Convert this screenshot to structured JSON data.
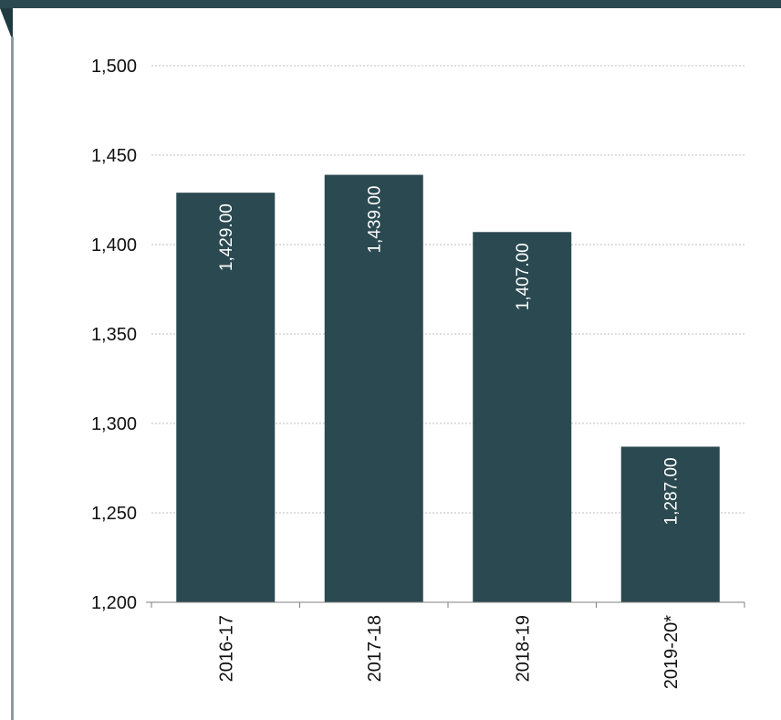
{
  "colors": {
    "bar": "#2b4951",
    "top_band": "#2b4951",
    "corner": "#1f3a41",
    "left_rule": "#8f9a9d",
    "grid": "#bfbfbf",
    "axis": "#7f7f7f"
  },
  "chart_data": {
    "type": "bar",
    "title": "",
    "xlabel": "",
    "ylabel": "",
    "categories": [
      "2016-17",
      "2017-18",
      "2018-19",
      "2019-20*"
    ],
    "values": [
      1429,
      1439,
      1407,
      1287
    ],
    "data_labels": [
      "1,429.00",
      "1,439.00",
      "1,407.00",
      "1,287.00"
    ],
    "ylim": [
      1200,
      1500
    ],
    "yticks": [
      1200,
      1250,
      1300,
      1350,
      1400,
      1450,
      1500
    ],
    "ytick_labels": [
      "1,200",
      "1,250",
      "1,300",
      "1,350",
      "1,400",
      "1,450",
      "1,500"
    ],
    "grid": true,
    "legend": "none"
  }
}
